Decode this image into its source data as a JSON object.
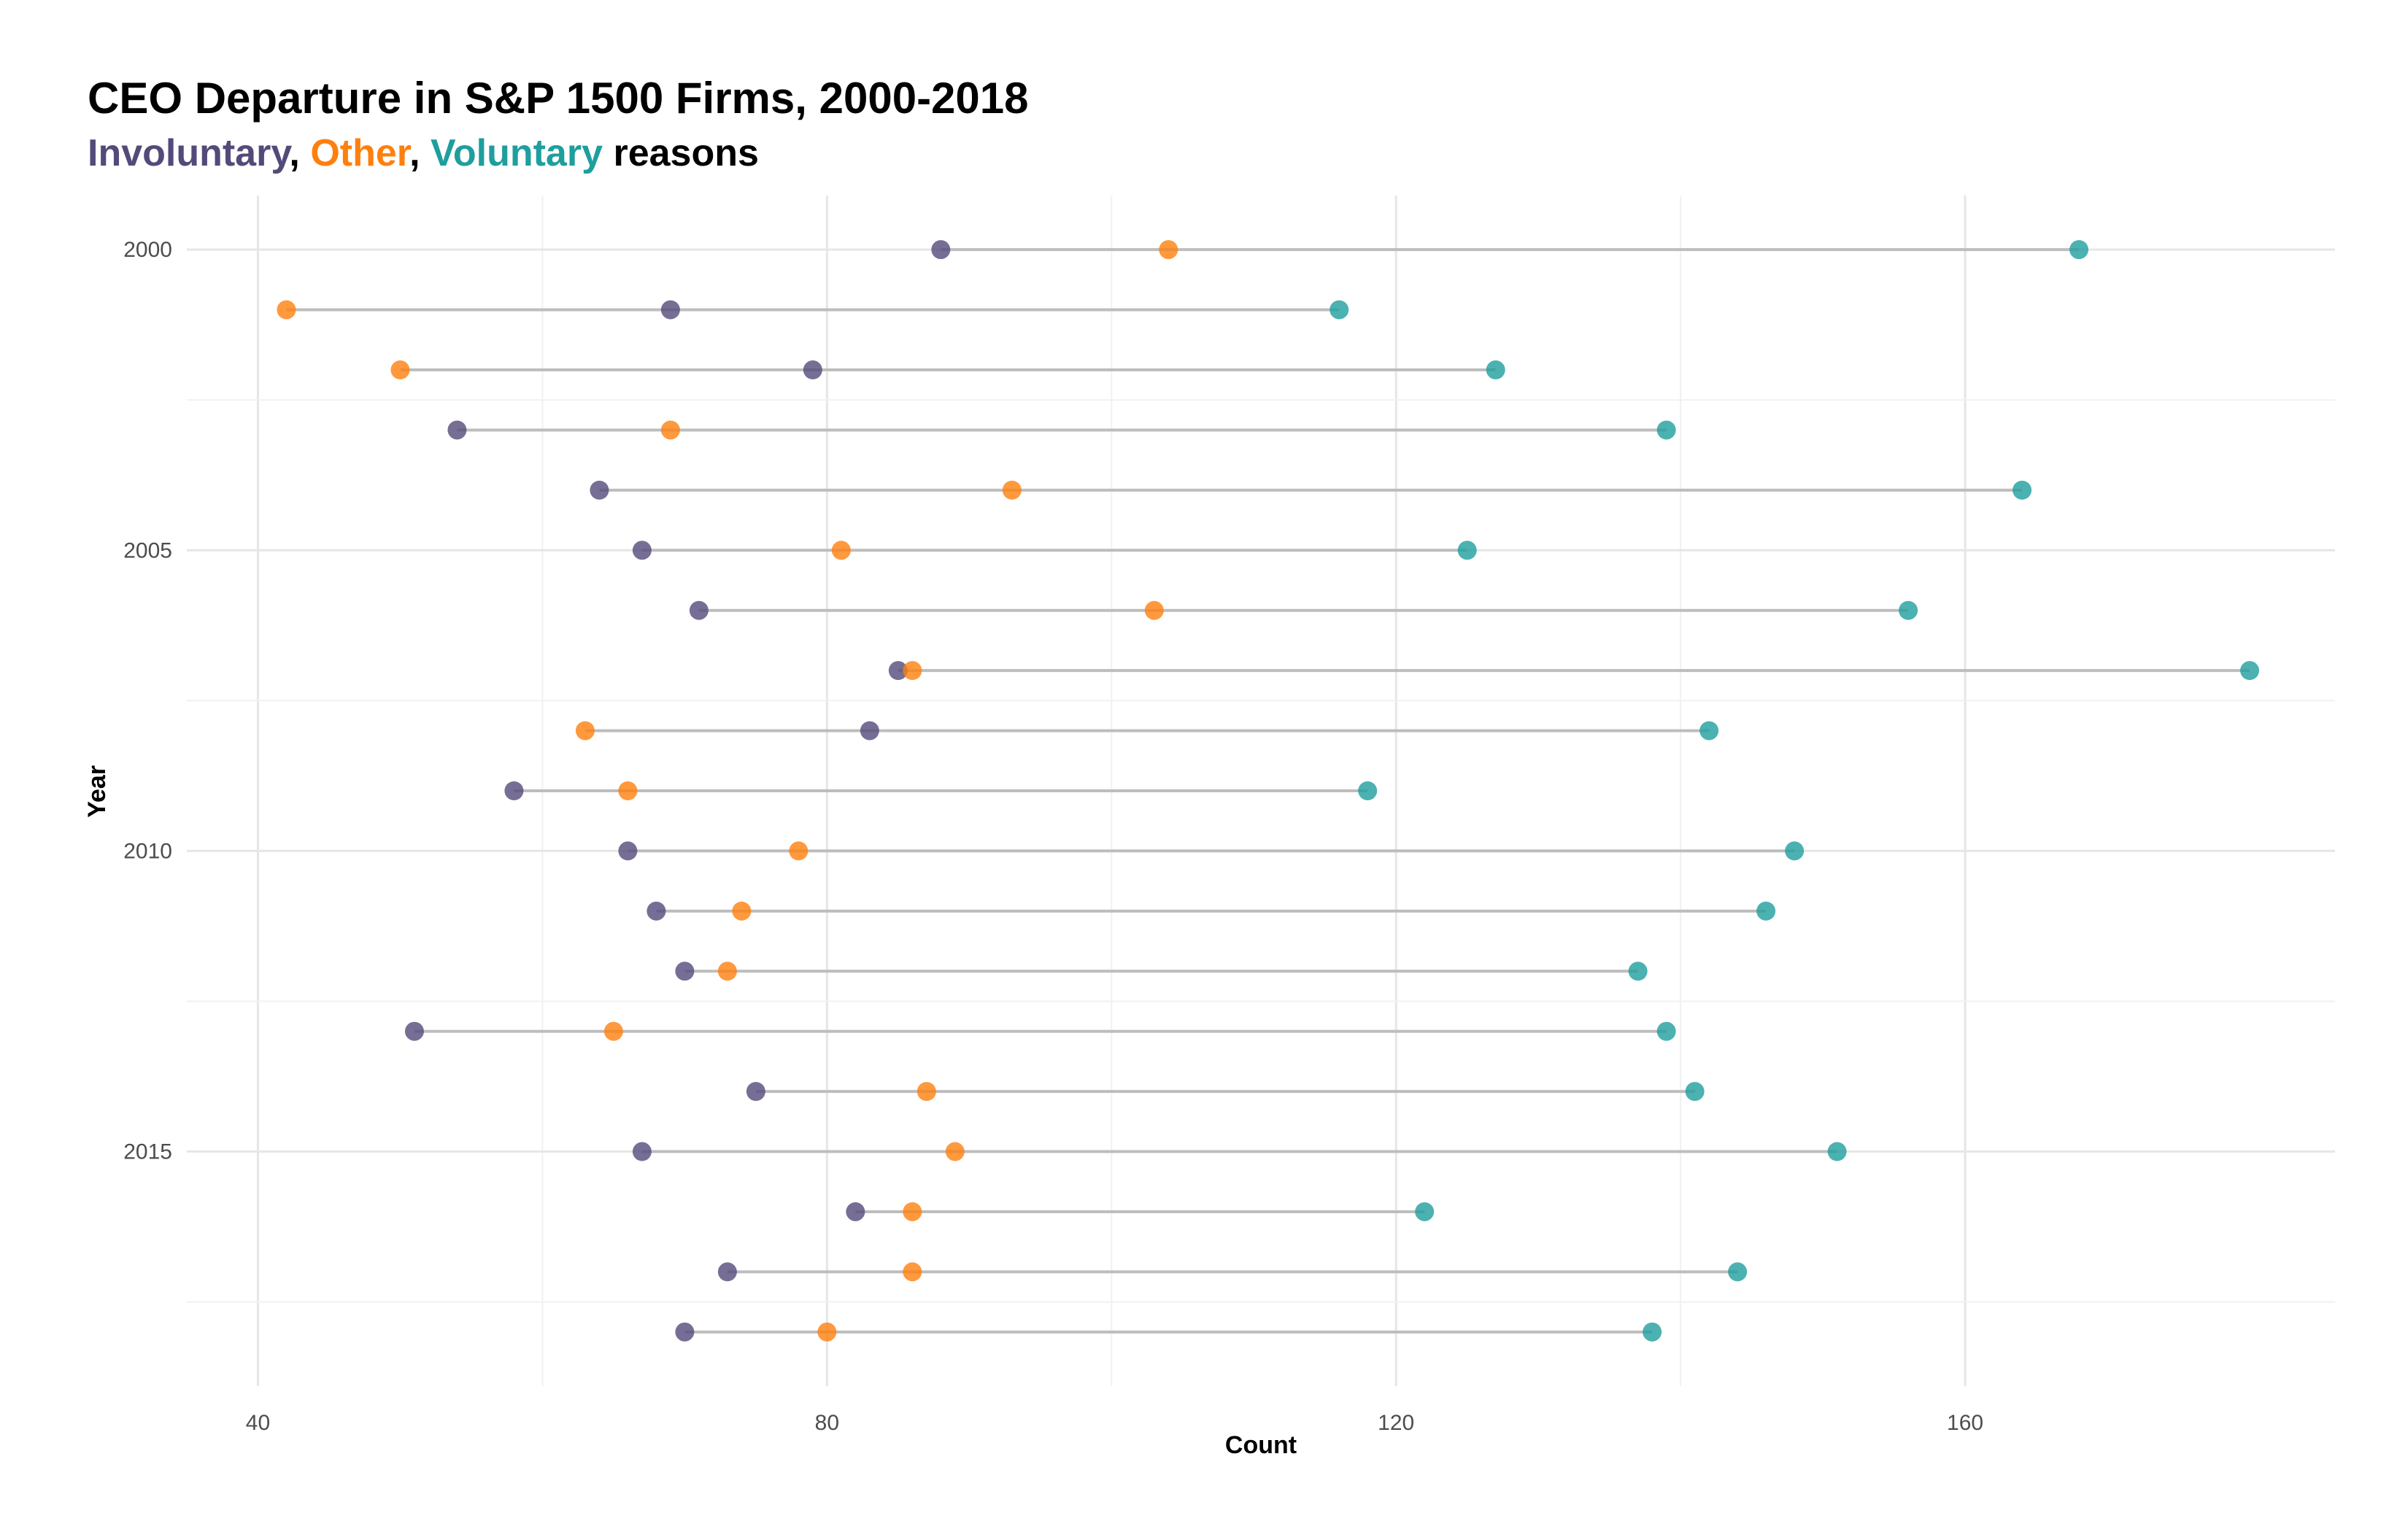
{
  "chart_data": {
    "type": "dumbbell",
    "title": "CEO Departure in S&P 1500 Firms, 2000-2018",
    "subtitle_parts": [
      {
        "text": "Involuntary",
        "color": "#544a7a"
      },
      {
        "text": ", ",
        "color": "#000000"
      },
      {
        "text": "Other",
        "color": "#ff7f0e"
      },
      {
        "text": ", ",
        "color": "#000000"
      },
      {
        "text": "Voluntary",
        "color": "#1f9e9e"
      },
      {
        "text": " reasons",
        "color": "#000000"
      }
    ],
    "xlabel": "Count",
    "ylabel": "Year",
    "xlim": [
      35,
      186
    ],
    "x_ticks": [
      40,
      80,
      120,
      160
    ],
    "y_ticks": [
      2000,
      2005,
      2010,
      2015
    ],
    "y_range": [
      1999.1,
      2018.9
    ],
    "grid": true,
    "series": [
      {
        "name": "Involuntary",
        "color": "#544a7a"
      },
      {
        "name": "Other",
        "color": "#ff7f0e"
      },
      {
        "name": "Voluntary",
        "color": "#1f9e9e"
      }
    ],
    "years": [
      2000,
      2001,
      2002,
      2003,
      2004,
      2005,
      2006,
      2007,
      2008,
      2009,
      2010,
      2011,
      2012,
      2013,
      2014,
      2015,
      2016,
      2017,
      2018
    ],
    "involuntary": [
      88,
      69,
      79,
      54,
      64,
      67,
      71,
      85,
      83,
      58,
      66,
      68,
      70,
      51,
      75,
      67,
      82,
      73,
      70
    ],
    "other": [
      104,
      42,
      50,
      69,
      93,
      81,
      103,
      86,
      63,
      66,
      78,
      74,
      73,
      65,
      87,
      89,
      86,
      86,
      80
    ],
    "voluntary": [
      168,
      116,
      127,
      139,
      164,
      125,
      156,
      180,
      142,
      118,
      148,
      146,
      137,
      139,
      141,
      151,
      122,
      144,
      138
    ]
  }
}
